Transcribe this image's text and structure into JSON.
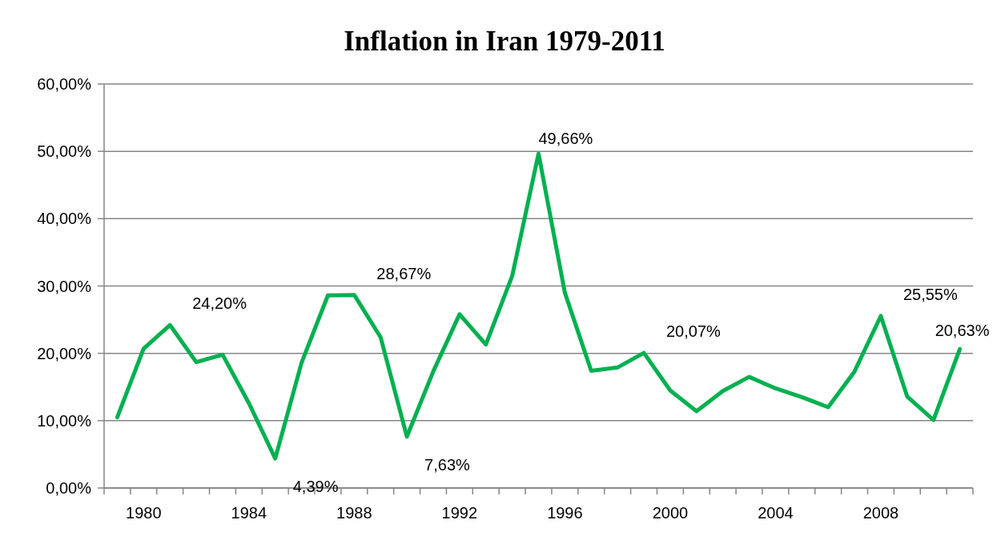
{
  "chart_data": {
    "type": "line",
    "title": "Inflation in Iran 1979-2011",
    "categories": [
      null,
      "1980",
      null,
      null,
      null,
      "1984",
      null,
      null,
      null,
      "1988",
      null,
      null,
      null,
      "1992",
      null,
      null,
      null,
      "1996",
      null,
      null,
      null,
      "2000",
      null,
      null,
      null,
      "2004",
      null,
      null,
      null,
      "2008",
      null,
      null,
      null
    ],
    "series": [
      {
        "color": "#00b050",
        "values": [
          10.5,
          20.7,
          24.2,
          18.7,
          19.8,
          12.6,
          4.39,
          18.6,
          28.6,
          28.67,
          22.4,
          7.63,
          17.3,
          25.8,
          21.3,
          31.5,
          49.66,
          29.0,
          17.4,
          17.9,
          20.07,
          14.5,
          11.4,
          14.4,
          16.5,
          14.8,
          13.5,
          12.0,
          17.3,
          25.55,
          13.6,
          10.1,
          20.63
        ],
        "value_labels": [
          null,
          null,
          "24,20%",
          null,
          null,
          null,
          "4,39%",
          null,
          null,
          "28,67%",
          null,
          "7,63%",
          null,
          null,
          null,
          null,
          "49,66%",
          null,
          null,
          null,
          "20,07%",
          null,
          null,
          null,
          null,
          null,
          null,
          null,
          null,
          "25,55%",
          null,
          null,
          "20,63%"
        ]
      }
    ],
    "ylim": [
      0,
      60
    ],
    "yticks": [
      {
        "value": 0,
        "label": "0,00%"
      },
      {
        "value": 10,
        "label": "10,00%"
      },
      {
        "value": 20,
        "label": "20,00%"
      },
      {
        "value": 30,
        "label": "30,00%"
      },
      {
        "value": 40,
        "label": "40,00%"
      },
      {
        "value": 50,
        "label": "50,00%"
      },
      {
        "value": 60,
        "label": "60,00%"
      }
    ],
    "grid": "y",
    "marker": "none",
    "line_style": "solid"
  }
}
